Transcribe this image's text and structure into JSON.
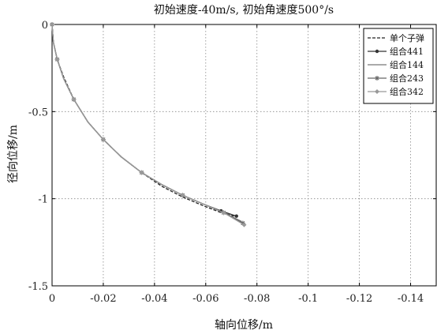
{
  "chart_data": {
    "type": "line",
    "title": "初始速度-40m/s, 初始角速度500°/s",
    "xlabel": "轴向位移/m",
    "ylabel": "径向位移/m",
    "xlim": [
      0,
      -0.15
    ],
    "ylim": [
      -1.5,
      0
    ],
    "x_reversed": true,
    "grid": true,
    "legend_position": "top-right",
    "x_ticks": [
      0,
      -0.02,
      -0.04,
      -0.06,
      -0.08,
      -0.1,
      -0.12,
      -0.14
    ],
    "x_tick_labels": [
      "0",
      "-0.02",
      "-0.04",
      "-0.06",
      "-0.08",
      "-0.1",
      "-0.12",
      "-0.14"
    ],
    "y_ticks": [
      0,
      -0.5,
      -1,
      -1.5
    ],
    "y_tick_labels": [
      "0",
      "-0.5",
      "-1",
      "-1.5"
    ],
    "series": [
      {
        "name": "单个子弹",
        "style": "dashed",
        "marker": "none",
        "color": "#222222",
        "points": [
          [
            0,
            0
          ],
          [
            -0.0005,
            -0.1
          ],
          [
            -0.002,
            -0.2
          ],
          [
            -0.0045,
            -0.3
          ],
          [
            -0.0085,
            -0.43
          ],
          [
            -0.014,
            -0.56
          ],
          [
            -0.02,
            -0.66
          ],
          [
            -0.027,
            -0.76
          ],
          [
            -0.035,
            -0.85
          ],
          [
            -0.043,
            -0.93
          ],
          [
            -0.051,
            -0.99
          ],
          [
            -0.059,
            -1.04
          ],
          [
            -0.066,
            -1.08
          ],
          [
            -0.071,
            -1.1
          ]
        ]
      },
      {
        "name": "组合441",
        "style": "solid",
        "marker": "dot",
        "color": "#333333",
        "points": [
          [
            0,
            0
          ],
          [
            -0.0005,
            -0.1
          ],
          [
            -0.002,
            -0.2
          ],
          [
            -0.0045,
            -0.31
          ],
          [
            -0.0085,
            -0.43
          ],
          [
            -0.014,
            -0.56
          ],
          [
            -0.02,
            -0.66
          ],
          [
            -0.027,
            -0.76
          ],
          [
            -0.035,
            -0.85
          ],
          [
            -0.043,
            -0.92
          ],
          [
            -0.051,
            -0.98
          ],
          [
            -0.059,
            -1.03
          ],
          [
            -0.066,
            -1.07
          ],
          [
            -0.072,
            -1.1
          ]
        ]
      },
      {
        "name": "组合144",
        "style": "solid",
        "marker": "none",
        "color": "#777777",
        "points": [
          [
            0,
            0
          ],
          [
            -0.0005,
            -0.1
          ],
          [
            -0.002,
            -0.2
          ],
          [
            -0.0045,
            -0.31
          ],
          [
            -0.0085,
            -0.43
          ],
          [
            -0.014,
            -0.56
          ],
          [
            -0.02,
            -0.66
          ],
          [
            -0.027,
            -0.76
          ],
          [
            -0.035,
            -0.85
          ],
          [
            -0.043,
            -0.92
          ],
          [
            -0.051,
            -0.98
          ],
          [
            -0.059,
            -1.03
          ],
          [
            -0.067,
            -1.08
          ],
          [
            -0.074,
            -1.13
          ]
        ]
      },
      {
        "name": "组合243",
        "style": "solid",
        "marker": "star",
        "color": "#666666",
        "points": [
          [
            0,
            0
          ],
          [
            -0.0005,
            -0.1
          ],
          [
            -0.002,
            -0.2
          ],
          [
            -0.0045,
            -0.31
          ],
          [
            -0.0085,
            -0.43
          ],
          [
            -0.014,
            -0.56
          ],
          [
            -0.02,
            -0.66
          ],
          [
            -0.027,
            -0.76
          ],
          [
            -0.035,
            -0.85
          ],
          [
            -0.043,
            -0.92
          ],
          [
            -0.051,
            -0.98
          ],
          [
            -0.059,
            -1.03
          ],
          [
            -0.067,
            -1.08
          ],
          [
            -0.0745,
            -1.14
          ]
        ]
      },
      {
        "name": "组合342",
        "style": "solid",
        "marker": "diamond",
        "color": "#999999",
        "points": [
          [
            0,
            0
          ],
          [
            -0.0005,
            -0.1
          ],
          [
            -0.002,
            -0.2
          ],
          [
            -0.0045,
            -0.31
          ],
          [
            -0.0085,
            -0.43
          ],
          [
            -0.014,
            -0.56
          ],
          [
            -0.02,
            -0.66
          ],
          [
            -0.027,
            -0.76
          ],
          [
            -0.035,
            -0.85
          ],
          [
            -0.043,
            -0.92
          ],
          [
            -0.051,
            -0.98
          ],
          [
            -0.059,
            -1.03
          ],
          [
            -0.067,
            -1.08
          ],
          [
            -0.075,
            -1.15
          ]
        ]
      }
    ]
  }
}
